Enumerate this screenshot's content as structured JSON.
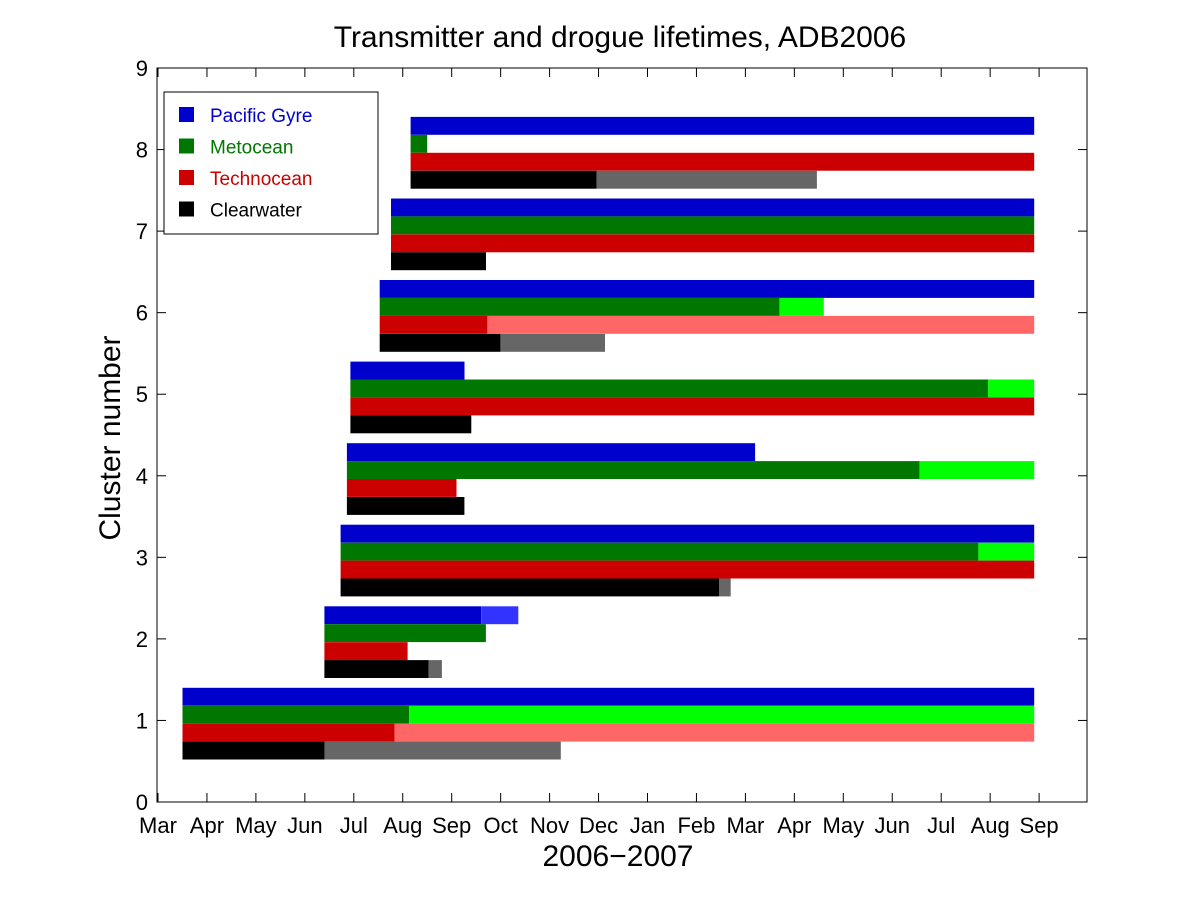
{
  "chart_data": {
    "type": "bar",
    "title": "Transmitter and drogue lifetimes, ADB2006",
    "xlabel": "2006−2007",
    "ylabel": "Cluster number",
    "x_tick_labels": [
      "Mar",
      "Apr",
      "May",
      "Jun",
      "Jul",
      "Aug",
      "Sep",
      "Oct",
      "Nov",
      "Dec",
      "Jan",
      "Feb",
      "Mar",
      "Apr",
      "May",
      "Jun",
      "Jul",
      "Aug",
      "Sep"
    ],
    "x_range": [
      0,
      19
    ],
    "y_ticks": [
      "0",
      "1",
      "2",
      "3",
      "4",
      "5",
      "6",
      "7",
      "8",
      "9"
    ],
    "ylim": [
      0,
      9
    ],
    "legend_position": "top-left",
    "colors": {
      "Pacific Gyre": "#0000cc",
      "Metocean": "#007700",
      "Technocean": "#cc0000",
      "Clearwater": "#000000",
      "Pacific Gyre extended": "#3333ff",
      "Metocean extended": "#00ff00",
      "Technocean extended": "#ff6666",
      "Clearwater extended": "#666666"
    },
    "series": [
      {
        "name": "Pacific Gyre",
        "values": [
          {
            "cluster": 1,
            "start": 0.5,
            "end": 17.9
          },
          {
            "cluster": 2,
            "start": 3.4,
            "end": 6.6,
            "ext_end": 7.36
          },
          {
            "cluster": 3,
            "start": 3.73,
            "end": 17.9
          },
          {
            "cluster": 4,
            "start": 3.86,
            "end": 12.2
          },
          {
            "cluster": 5,
            "start": 3.93,
            "end": 6.26
          },
          {
            "cluster": 6,
            "start": 4.53,
            "end": 17.9
          },
          {
            "cluster": 7,
            "start": 4.76,
            "end": 17.9
          },
          {
            "cluster": 8,
            "start": 5.16,
            "end": 17.9
          }
        ]
      },
      {
        "name": "Metocean",
        "values": [
          {
            "cluster": 1,
            "start": 0.5,
            "end": 5.13,
            "ext_end": 17.9
          },
          {
            "cluster": 2,
            "start": 3.4,
            "end": 6.7
          },
          {
            "cluster": 3,
            "start": 3.73,
            "end": 16.76,
            "ext_end": 17.9
          },
          {
            "cluster": 4,
            "start": 3.86,
            "end": 15.56,
            "ext_end": 17.9
          },
          {
            "cluster": 5,
            "start": 3.93,
            "end": 16.96,
            "ext_end": 17.9
          },
          {
            "cluster": 6,
            "start": 4.53,
            "end": 12.7,
            "ext_end": 13.6
          },
          {
            "cluster": 7,
            "start": 4.76,
            "end": 17.9
          },
          {
            "cluster": 8,
            "start": 5.16,
            "end": 5.5
          }
        ]
      },
      {
        "name": "Technocean",
        "values": [
          {
            "cluster": 1,
            "start": 0.5,
            "end": 4.83,
            "ext_end": 17.9
          },
          {
            "cluster": 2,
            "start": 3.4,
            "end": 5.1
          },
          {
            "cluster": 3,
            "start": 3.73,
            "end": 17.9
          },
          {
            "cluster": 4,
            "start": 3.86,
            "end": 6.1
          },
          {
            "cluster": 5,
            "start": 3.93,
            "end": 17.9
          },
          {
            "cluster": 6,
            "start": 4.53,
            "end": 6.73,
            "ext_end": 17.9
          },
          {
            "cluster": 7,
            "start": 4.76,
            "end": 17.9
          },
          {
            "cluster": 8,
            "start": 5.16,
            "end": 17.9
          }
        ]
      },
      {
        "name": "Clearwater",
        "values": [
          {
            "cluster": 1,
            "start": 0.5,
            "end": 3.4,
            "ext_end": 8.23
          },
          {
            "cluster": 2,
            "start": 3.4,
            "end": 5.53,
            "ext_end": 5.8
          },
          {
            "cluster": 3,
            "start": 3.73,
            "end": 11.46,
            "ext_end": 11.7
          },
          {
            "cluster": 4,
            "start": 3.86,
            "end": 6.26
          },
          {
            "cluster": 5,
            "start": 3.93,
            "end": 6.4
          },
          {
            "cluster": 6,
            "start": 4.53,
            "end": 7.0,
            "ext_end": 9.13
          },
          {
            "cluster": 7,
            "start": 4.76,
            "end": 6.7
          },
          {
            "cluster": 8,
            "start": 5.16,
            "end": 8.96,
            "ext_end": 13.46
          }
        ]
      }
    ]
  }
}
